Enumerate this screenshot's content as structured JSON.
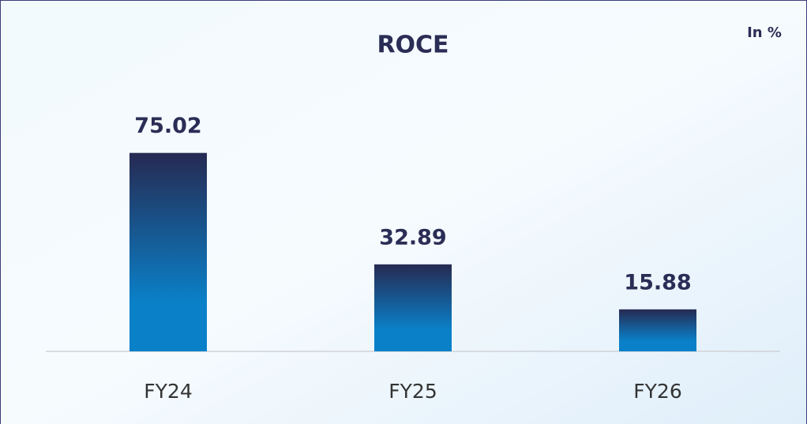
{
  "chart_data": {
    "type": "bar",
    "title": "ROCE",
    "unit_label": "In %",
    "categories": [
      "FY24",
      "FY25",
      "FY26"
    ],
    "values": [
      75.02,
      32.89,
      15.88
    ],
    "color": [
      "#262a52",
      "#0a80c8"
    ],
    "ylim": [
      0,
      100
    ],
    "grid": false
  }
}
